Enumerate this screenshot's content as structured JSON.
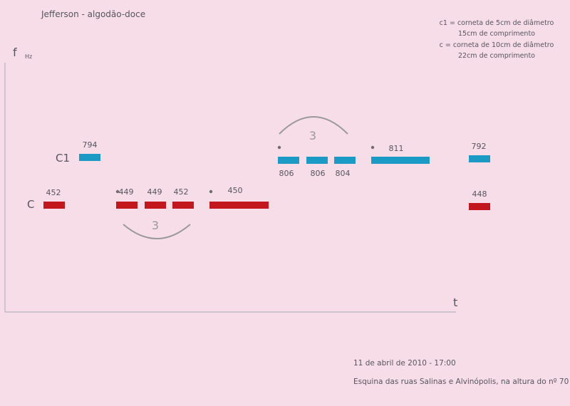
{
  "title": "Jefferson - algodão-doce",
  "legend": {
    "c1_line1": "c1 = corneta de 5cm de diâmetro",
    "c1_line2": "15cm de comprimento",
    "c_line1": "c = corneta de 10cm de diâmetro",
    "c_line2": "22cm de comprimento"
  },
  "axes": {
    "y_label": "f",
    "y_unit": "Hz",
    "x_label": "t"
  },
  "rows": {
    "c1_label": "C1",
    "c_label": "C"
  },
  "colors": {
    "c1": "#1b9ac6",
    "c": "#c3171e",
    "axis": "#b9b4bb",
    "tuplet": "#999999",
    "dot": "#6e6e6e"
  },
  "notes": [
    {
      "row": "c1",
      "freq": "794",
      "dot": false
    },
    {
      "row": "c1",
      "freq": "806",
      "dot": true
    },
    {
      "row": "c1",
      "freq": "806",
      "dot": false
    },
    {
      "row": "c1",
      "freq": "804",
      "dot": false
    },
    {
      "row": "c1",
      "freq": "811",
      "dot": true
    },
    {
      "row": "c1",
      "freq": "792",
      "dot": false
    },
    {
      "row": "c",
      "freq": "452",
      "dot": false
    },
    {
      "row": "c",
      "freq": "449",
      "dot": true
    },
    {
      "row": "c",
      "freq": "449",
      "dot": false
    },
    {
      "row": "c",
      "freq": "452",
      "dot": false
    },
    {
      "row": "c",
      "freq": "450",
      "dot": true
    },
    {
      "row": "c",
      "freq": "448",
      "dot": false
    }
  ],
  "tuplets": [
    {
      "label": "3"
    },
    {
      "label": "3"
    }
  ],
  "footer": {
    "date_time": "11 de abril de 2010    -     17:00",
    "location": "Esquina das ruas Salinas e Alvinópolis, na altura do nº 70"
  }
}
